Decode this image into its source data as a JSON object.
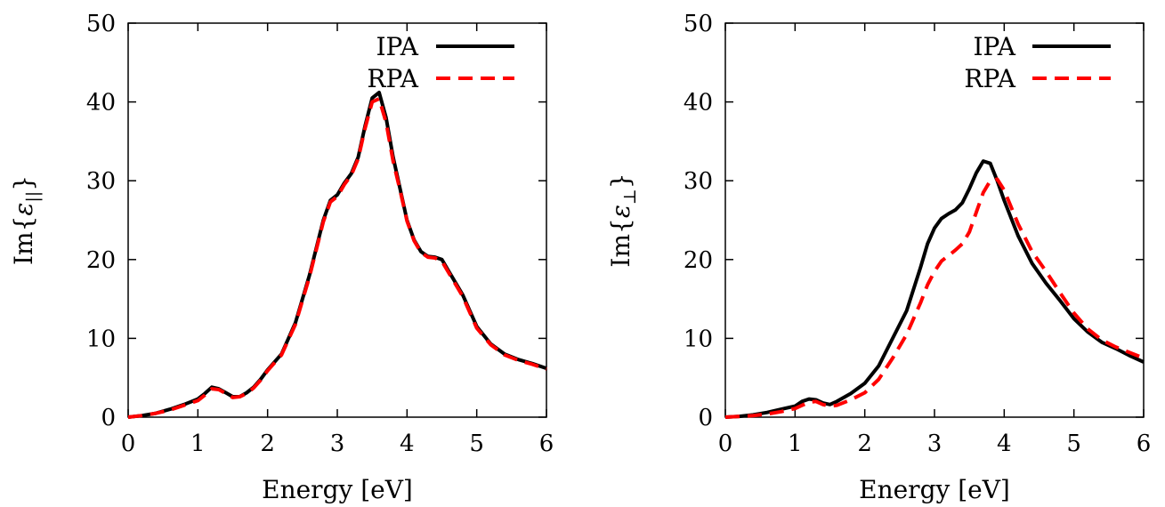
{
  "chart_data": [
    {
      "type": "line",
      "xlabel": "Energy [eV]",
      "ylabel_prefix": "Im{",
      "ylabel_symbol": "ε",
      "ylabel_subscript": "||",
      "ylabel_suffix": "}",
      "xlim": [
        0,
        6
      ],
      "ylim": [
        0,
        50
      ],
      "xticks": [
        0,
        1,
        2,
        3,
        4,
        5,
        6
      ],
      "yticks": [
        0,
        10,
        20,
        30,
        40,
        50
      ],
      "grid": false,
      "legend_position": "top-right",
      "series": [
        {
          "name": "IPA",
          "color": "#000000",
          "style": "solid",
          "x": [
            0,
            0.2,
            0.4,
            0.6,
            0.8,
            1.0,
            1.1,
            1.2,
            1.3,
            1.4,
            1.5,
            1.6,
            1.7,
            1.8,
            1.9,
            2.0,
            2.2,
            2.4,
            2.6,
            2.8,
            2.9,
            3.0,
            3.1,
            3.2,
            3.3,
            3.4,
            3.5,
            3.6,
            3.7,
            3.8,
            3.9,
            4.0,
            4.1,
            4.2,
            4.3,
            4.4,
            4.5,
            4.6,
            4.8,
            5.0,
            5.2,
            5.4,
            5.6,
            5.8,
            6.0
          ],
          "values": [
            0,
            0.2,
            0.5,
            1.0,
            1.6,
            2.3,
            3.0,
            3.8,
            3.6,
            3.1,
            2.6,
            2.6,
            3.1,
            3.8,
            4.8,
            6.0,
            8.0,
            12.0,
            18.0,
            25.0,
            27.5,
            28.2,
            29.7,
            30.9,
            33.0,
            37.0,
            40.5,
            41.2,
            38.0,
            33.0,
            29.0,
            25.0,
            22.5,
            21.0,
            20.4,
            20.3,
            20.0,
            18.5,
            15.5,
            11.5,
            9.3,
            8.0,
            7.3,
            6.8,
            6.2
          ]
        },
        {
          "name": "RPA",
          "color": "#ff0000",
          "style": "dashed",
          "x": [
            0,
            0.2,
            0.4,
            0.6,
            0.8,
            1.0,
            1.1,
            1.2,
            1.3,
            1.4,
            1.5,
            1.6,
            1.7,
            1.8,
            1.9,
            2.0,
            2.2,
            2.4,
            2.6,
            2.8,
            2.9,
            3.0,
            3.1,
            3.2,
            3.3,
            3.4,
            3.5,
            3.6,
            3.7,
            3.8,
            3.9,
            4.0,
            4.1,
            4.2,
            4.3,
            4.4,
            4.5,
            4.6,
            4.8,
            5.0,
            5.2,
            5.4,
            5.6,
            5.8,
            6.0
          ],
          "values": [
            0,
            0.2,
            0.5,
            0.9,
            1.5,
            2.1,
            2.8,
            3.6,
            3.5,
            3.0,
            2.5,
            2.6,
            3.0,
            3.7,
            4.7,
            5.9,
            7.9,
            11.8,
            17.8,
            24.8,
            27.3,
            28.0,
            29.5,
            30.7,
            32.8,
            36.7,
            40.0,
            40.4,
            37.4,
            32.5,
            28.8,
            24.9,
            22.4,
            20.9,
            20.3,
            20.2,
            19.8,
            18.3,
            15.3,
            11.3,
            9.2,
            7.9,
            7.2,
            6.7,
            6.1
          ]
        }
      ]
    },
    {
      "type": "line",
      "xlabel": "Energy [eV]",
      "ylabel_prefix": "Im{",
      "ylabel_symbol": "ε",
      "ylabel_subscript": "⊥",
      "ylabel_suffix": "}",
      "xlim": [
        0,
        6
      ],
      "ylim": [
        0,
        50
      ],
      "xticks": [
        0,
        1,
        2,
        3,
        4,
        5,
        6
      ],
      "yticks": [
        0,
        10,
        20,
        30,
        40,
        50
      ],
      "grid": false,
      "legend_position": "top-right",
      "series": [
        {
          "name": "IPA",
          "color": "#000000",
          "style": "solid",
          "x": [
            0,
            0.2,
            0.4,
            0.6,
            0.8,
            1.0,
            1.1,
            1.2,
            1.3,
            1.4,
            1.5,
            1.6,
            1.8,
            2.0,
            2.2,
            2.4,
            2.6,
            2.8,
            2.9,
            3.0,
            3.1,
            3.2,
            3.3,
            3.4,
            3.5,
            3.6,
            3.7,
            3.8,
            3.9,
            4.0,
            4.2,
            4.4,
            4.6,
            4.8,
            5.0,
            5.2,
            5.4,
            5.6,
            5.8,
            6.0
          ],
          "values": [
            0,
            0.1,
            0.3,
            0.6,
            1.0,
            1.4,
            2.0,
            2.3,
            2.2,
            1.8,
            1.6,
            2.0,
            3.0,
            4.3,
            6.5,
            10.0,
            13.5,
            19.0,
            22.0,
            24.0,
            25.2,
            25.8,
            26.3,
            27.2,
            29.0,
            31.0,
            32.5,
            32.2,
            30.0,
            27.5,
            23.0,
            19.5,
            17.0,
            14.8,
            12.5,
            10.8,
            9.5,
            8.7,
            7.8,
            7.0
          ]
        },
        {
          "name": "RPA",
          "color": "#ff0000",
          "style": "dashed",
          "x": [
            0,
            0.2,
            0.4,
            0.6,
            0.8,
            1.0,
            1.1,
            1.2,
            1.3,
            1.4,
            1.5,
            1.6,
            1.8,
            2.0,
            2.2,
            2.4,
            2.6,
            2.8,
            2.9,
            3.0,
            3.1,
            3.2,
            3.3,
            3.4,
            3.5,
            3.6,
            3.7,
            3.8,
            3.9,
            4.0,
            4.2,
            4.4,
            4.6,
            4.8,
            5.0,
            5.2,
            5.4,
            5.6,
            5.8,
            6.0
          ],
          "values": [
            0,
            0.1,
            0.2,
            0.4,
            0.7,
            1.1,
            1.5,
            1.9,
            2.0,
            1.6,
            1.4,
            1.5,
            2.2,
            3.1,
            4.8,
            7.5,
            10.5,
            14.5,
            16.8,
            18.5,
            19.8,
            20.5,
            21.2,
            22.0,
            23.5,
            26.0,
            28.5,
            30.0,
            30.2,
            28.8,
            24.5,
            21.0,
            18.5,
            15.8,
            13.2,
            11.2,
            9.8,
            8.9,
            8.2,
            7.5
          ]
        }
      ]
    }
  ]
}
